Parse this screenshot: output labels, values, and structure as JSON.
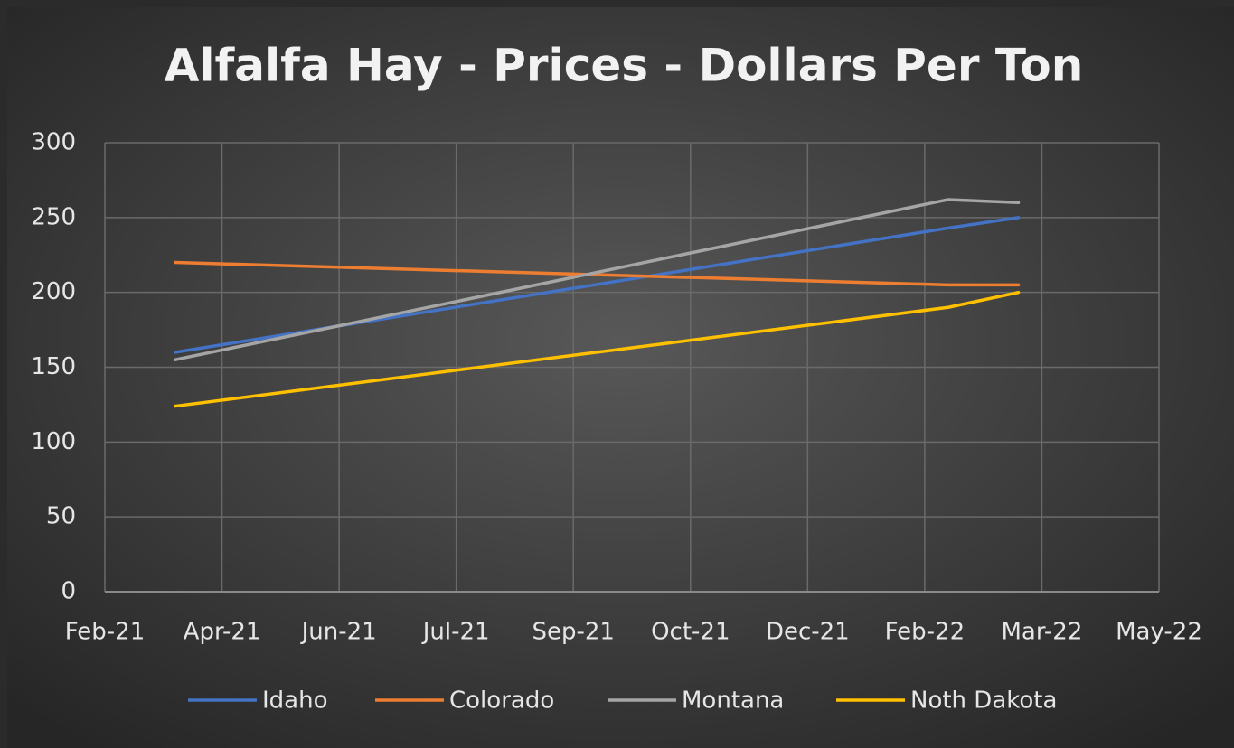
{
  "chart_data": {
    "type": "line",
    "title": "Alfalfa Hay - Prices - Dollars Per Ton",
    "x": [
      "Mar-21",
      "Feb-22",
      "Mar-22"
    ],
    "series": [
      {
        "name": "Idaho",
        "color": "#4472c4",
        "values": [
          160,
          243,
          250
        ]
      },
      {
        "name": "Colorado",
        "color": "#ed7d31",
        "values": [
          220,
          205,
          205
        ]
      },
      {
        "name": "Montana",
        "color": "#a5a5a5",
        "values": [
          155,
          262,
          260
        ]
      },
      {
        "name": "Noth Dakota",
        "color": "#ffc000",
        "values": [
          124,
          190,
          200
        ]
      }
    ],
    "xlim": [
      "Feb-21",
      "May-22"
    ],
    "xticks": [
      "Feb-21",
      "Apr-21",
      "Jun-21",
      "Jul-21",
      "Sep-21",
      "Oct-21",
      "Dec-21",
      "Feb-22",
      "Mar-22",
      "May-22"
    ],
    "ylim": [
      0,
      300
    ],
    "yticks": [
      0,
      50,
      100,
      150,
      200,
      250,
      300
    ],
    "grid": true,
    "legend": "bottom"
  }
}
